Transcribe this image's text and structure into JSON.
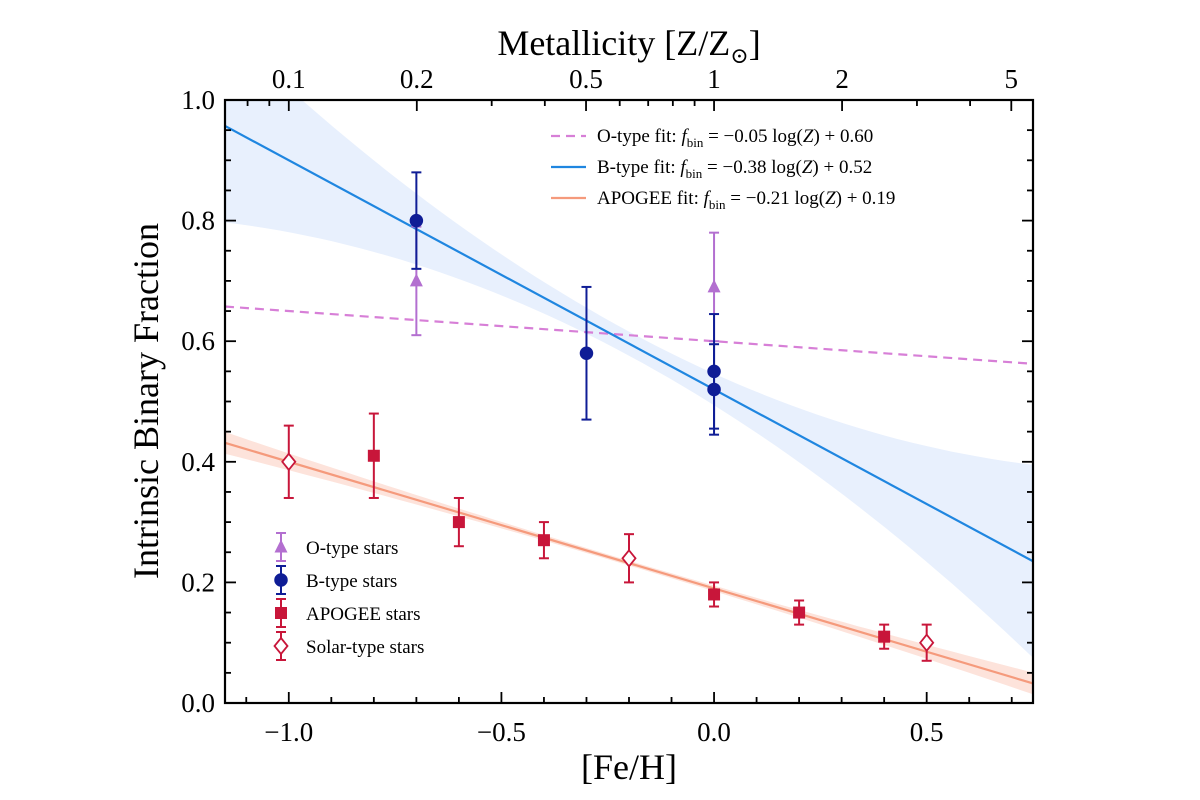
{
  "chart_data": {
    "type": "scatter",
    "title": "",
    "xlabel": "[Fe/H]",
    "ylabel": "Intrinsic Binary Fraction",
    "top_xlabel": "Metallicity [Z/Z",
    "top_xlabel_sub": "⊙",
    "top_xlabel_close": "]",
    "xlim": [
      -1.15,
      0.75
    ],
    "ylim": [
      0.0,
      1.0
    ],
    "x_ticks": [
      {
        "value": -1.0,
        "label": "−1.0"
      },
      {
        "value": -0.5,
        "label": "−0.5"
      },
      {
        "value": 0.0,
        "label": "0.0"
      },
      {
        "value": 0.5,
        "label": "0.5"
      }
    ],
    "y_ticks": [
      {
        "value": 0.0,
        "label": "0.0"
      },
      {
        "value": 0.2,
        "label": "0.2"
      },
      {
        "value": 0.4,
        "label": "0.4"
      },
      {
        "value": 0.6,
        "label": "0.6"
      },
      {
        "value": 0.8,
        "label": "0.8"
      },
      {
        "value": 1.0,
        "label": "1.0"
      }
    ],
    "top_ticks": [
      {
        "z": 0.1,
        "label": "0.1"
      },
      {
        "z": 0.2,
        "label": "0.2"
      },
      {
        "z": 0.5,
        "label": "0.5"
      },
      {
        "z": 1,
        "label": "1"
      },
      {
        "z": 2,
        "label": "2"
      },
      {
        "z": 5,
        "label": "5"
      }
    ],
    "fits": [
      {
        "name": "O-type fit",
        "slope": -0.05,
        "intercept": 0.6,
        "color": "#d77fd7",
        "dash": true,
        "eq": {
          "prefix": "O-type fit:",
          "f": "f",
          "sub": "bin",
          "rest": " = −0.05 log(",
          "z": "Z",
          "tail": ") + 0.60"
        }
      },
      {
        "name": "B-type fit",
        "slope": -0.38,
        "intercept": 0.52,
        "color": "#1f86e0",
        "dash": false,
        "band": {
          "color": "#e8f0fd",
          "pivot": -0.2,
          "half_width_at_ends": 0.16,
          "min_half": 0.02
        },
        "eq": {
          "prefix": "B-type fit:",
          "f": "f",
          "sub": "bin",
          "rest": " = −0.38 log(",
          "z": "Z",
          "tail": ") + 0.52"
        }
      },
      {
        "name": "APOGEE fit",
        "slope": -0.21,
        "intercept": 0.19,
        "color": "#f59a7c",
        "dash": false,
        "band": {
          "color": "#fde3db",
          "pivot": -0.2,
          "half_width_at_ends": 0.018,
          "min_half": 0.004
        },
        "eq": {
          "prefix": "APOGEE fit:",
          "f": "f",
          "sub": "bin",
          "rest": " = −0.21 log(",
          "z": "Z",
          "tail": ") + 0.19"
        }
      }
    ],
    "series": [
      {
        "name": "O-type stars",
        "marker": "triangle",
        "color": "#b36fd0",
        "filled": true,
        "points": [
          {
            "x": -0.7,
            "y": 0.7,
            "err": 0.09
          },
          {
            "x": 0.0,
            "y": 0.69,
            "err": 0.09
          }
        ]
      },
      {
        "name": "B-type stars",
        "marker": "circle",
        "color": "#0f1d96",
        "filled": true,
        "points": [
          {
            "x": -0.7,
            "y": 0.8,
            "err": 0.08
          },
          {
            "x": -0.3,
            "y": 0.58,
            "err": 0.11
          },
          {
            "x": 0.0,
            "y": 0.55,
            "err": 0.095
          },
          {
            "x": 0.0,
            "y": 0.52,
            "err": 0.075
          }
        ]
      },
      {
        "name": "APOGEE stars",
        "marker": "square",
        "color": "#c8163a",
        "filled": true,
        "points": [
          {
            "x": -0.8,
            "y": 0.41,
            "err": 0.07
          },
          {
            "x": -0.6,
            "y": 0.3,
            "err": 0.04
          },
          {
            "x": -0.4,
            "y": 0.27,
            "err": 0.03
          },
          {
            "x": 0.0,
            "y": 0.18,
            "err": 0.02
          },
          {
            "x": 0.2,
            "y": 0.15,
            "err": 0.02
          },
          {
            "x": 0.4,
            "y": 0.11,
            "err": 0.02
          }
        ]
      },
      {
        "name": "Solar-type stars",
        "marker": "diamond",
        "color": "#c8163a",
        "filled": false,
        "points": [
          {
            "x": -1.0,
            "y": 0.4,
            "err": 0.06
          },
          {
            "x": -0.2,
            "y": 0.24,
            "err": 0.04
          },
          {
            "x": 0.5,
            "y": 0.1,
            "err": 0.03
          }
        ]
      }
    ],
    "legend_location_fits": "top-right",
    "legend_location_markers": "lower-left",
    "grid": false
  }
}
